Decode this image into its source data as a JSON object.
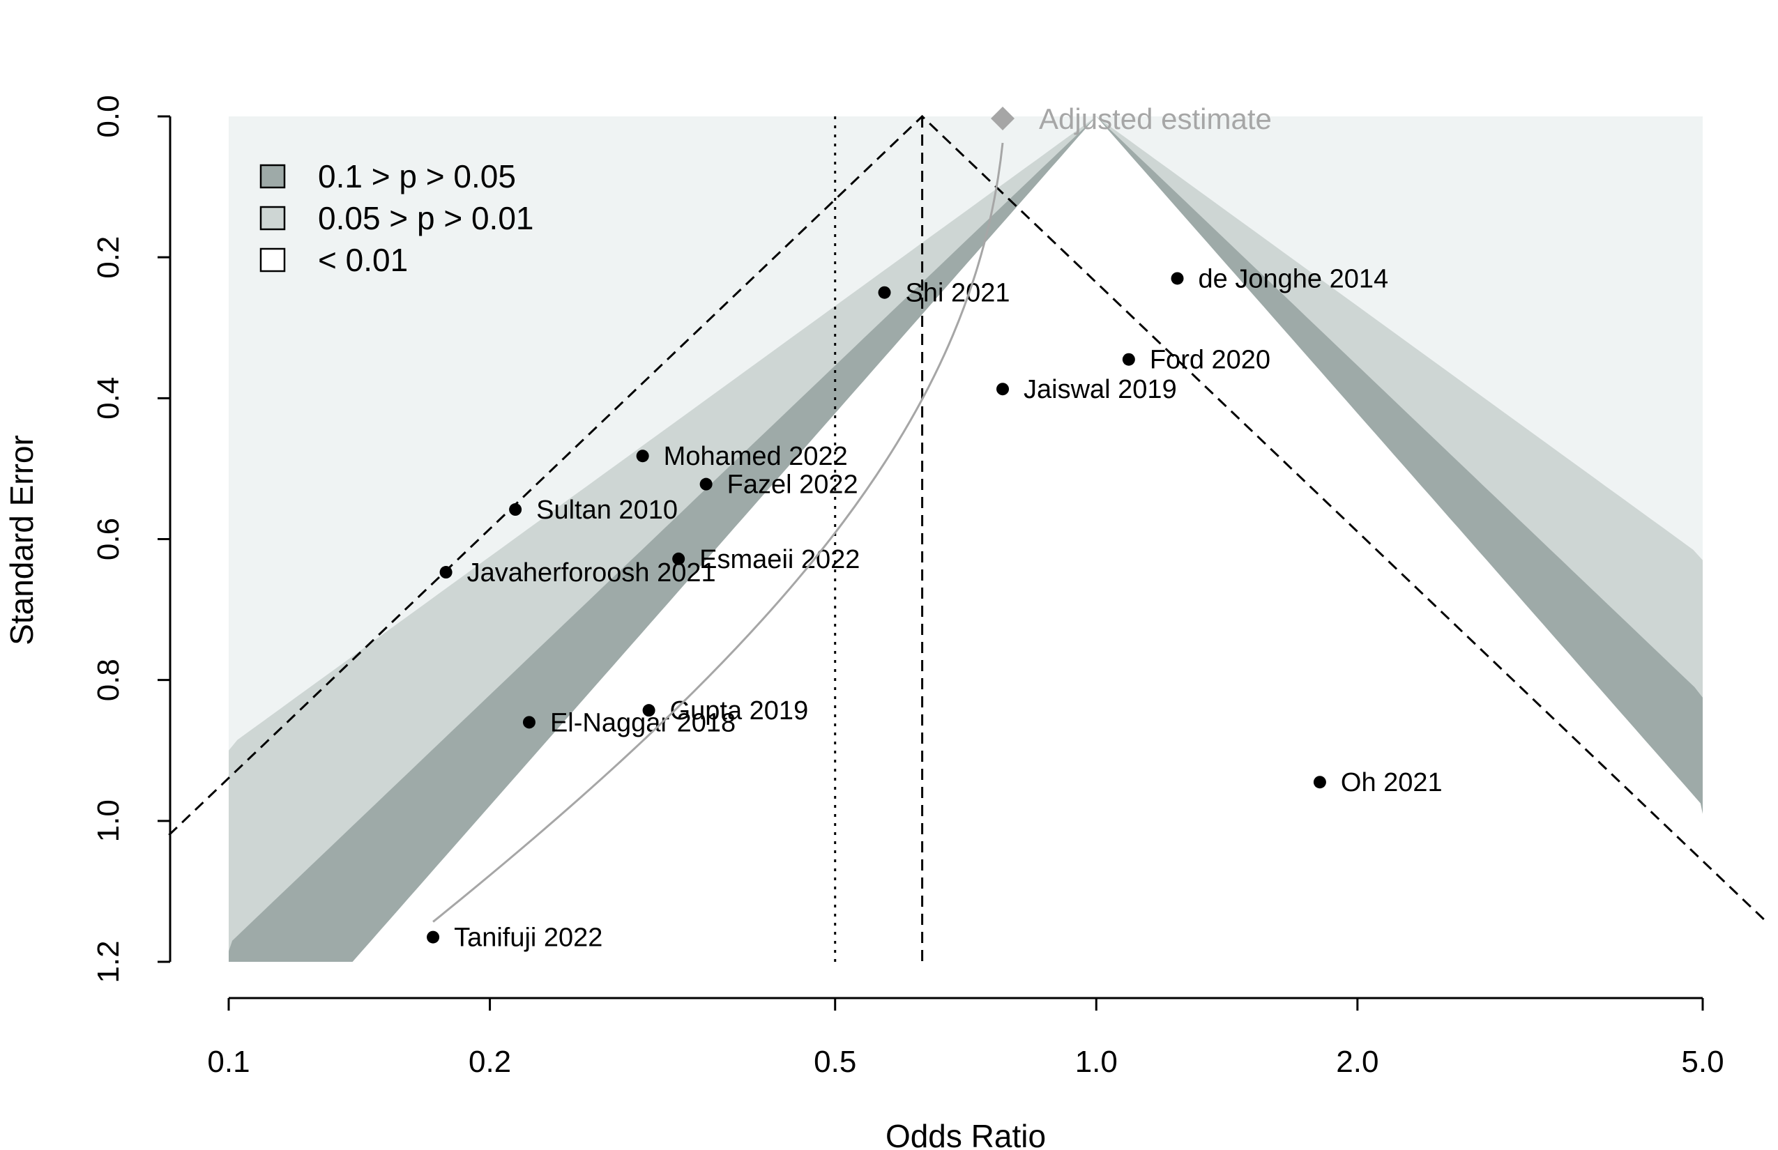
{
  "chart_data": {
    "type": "scatter",
    "subtype": "contour-enhanced funnel plot",
    "xlabel": "Odds Ratio",
    "ylabel": "Standard Error",
    "x_scale": "log",
    "xlim": [
      0.1,
      5.0
    ],
    "ylim": [
      1.2,
      0.0
    ],
    "x_ticks": [
      "0.1",
      "0.2",
      "0.5",
      "1.0",
      "2.0",
      "5.0"
    ],
    "y_ticks": [
      "0.0",
      "0.2",
      "0.4",
      "0.6",
      "0.8",
      "1.0",
      "1.2"
    ],
    "legend": {
      "placement": "top-left",
      "entries": [
        {
          "label": "0.1 > p > 0.05",
          "color": "#9EAAA8"
        },
        {
          "label": "0.05 > p > 0.01",
          "color": "#CED6D4"
        },
        {
          "label": "< 0.01",
          "color": "#FFFFFF"
        }
      ]
    },
    "background_color": "#EFF3F3",
    "studies": [
      {
        "label": "Shi 2021",
        "or": 0.57,
        "se": 0.25
      },
      {
        "label": "de Jonghe 2014",
        "or": 1.24,
        "se": 0.23
      },
      {
        "label": "Ford 2020",
        "or": 1.09,
        "se": 0.345
      },
      {
        "label": "Jaiswal 2019",
        "or": 0.78,
        "se": 0.387
      },
      {
        "label": "Mohamed 2022",
        "or": 0.3,
        "se": 0.482
      },
      {
        "label": "Fazel 2022",
        "or": 0.355,
        "se": 0.522
      },
      {
        "label": "Sultan 2010",
        "or": 0.214,
        "se": 0.558
      },
      {
        "label": "Esmaeii 2022",
        "or": 0.33,
        "se": 0.628
      },
      {
        "label": "Javaherforoosh 2021",
        "or": 0.178,
        "se": 0.647
      },
      {
        "label": "Gupta 2019",
        "or": 0.305,
        "se": 0.843
      },
      {
        "label": "El-Naggar 2018",
        "or": 0.222,
        "se": 0.86
      },
      {
        "label": "Oh 2021",
        "or": 1.81,
        "se": 0.945
      },
      {
        "label": "Tanifuji 2022",
        "or": 0.172,
        "se": 1.165
      }
    ],
    "reference_lines": {
      "null_effect_or": 1.0,
      "pooled_estimate_or": 0.63,
      "dotted_line_or": 0.5
    },
    "adjusted_estimate": {
      "label": "Adjusted estimate",
      "or": 0.78,
      "se": 0.0,
      "color": "#A6A6A6"
    },
    "grid": false
  }
}
